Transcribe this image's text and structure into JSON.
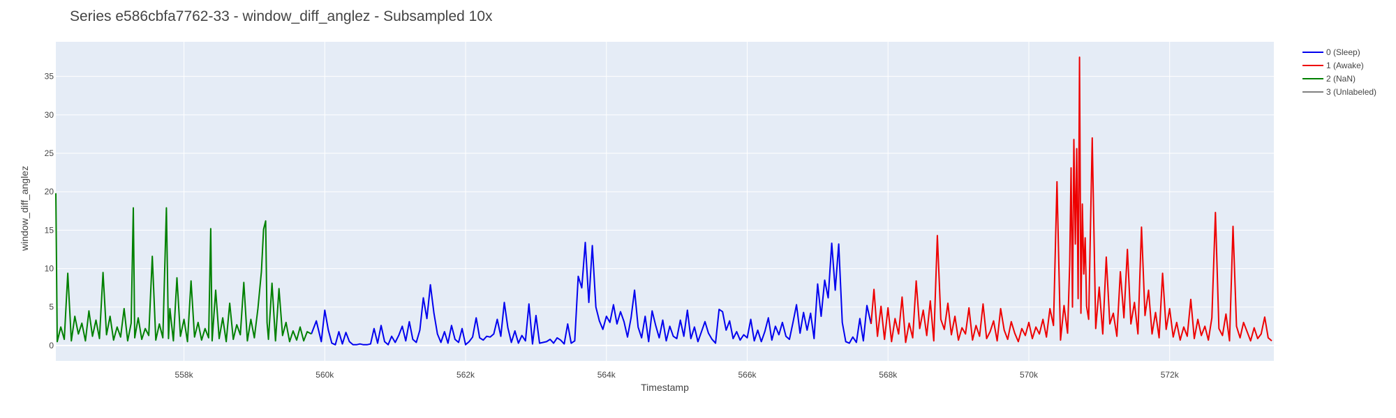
{
  "chart_data": {
    "type": "line",
    "title": "Series e586cbfa7762-33 - window_diff_anglez - Subsampled 10x",
    "xlabel": "Timestamp",
    "ylabel": "window_diff_anglez",
    "xlim": [
      556180,
      573480
    ],
    "ylim": [
      -2,
      39.5
    ],
    "x_ticks": [
      558000,
      560000,
      562000,
      564000,
      566000,
      568000,
      570000,
      572000
    ],
    "x_tick_labels": [
      "558k",
      "560k",
      "562k",
      "564k",
      "566k",
      "568k",
      "570k",
      "572k"
    ],
    "y_ticks": [
      0,
      5,
      10,
      15,
      20,
      25,
      30,
      35
    ],
    "y_tick_labels": [
      "0",
      "5",
      "10",
      "15",
      "20",
      "25",
      "30",
      "35"
    ],
    "grid": true,
    "legend_position": "top-right, outside plot",
    "series": [
      {
        "name": "0 (Sleep)",
        "color": "#0000ee",
        "x": [
          559810,
          559880,
          559950,
          560000,
          560050,
          560100,
          560150,
          560200,
          560250,
          560300,
          560350,
          560400,
          560450,
          560500,
          560550,
          560600,
          560650,
          560700,
          560750,
          560800,
          560850,
          560900,
          560950,
          561000,
          561050,
          561100,
          561150,
          561200,
          561250,
          561300,
          561350,
          561400,
          561450,
          561500,
          561550,
          561600,
          561650,
          561700,
          561750,
          561800,
          561850,
          561900,
          561950,
          562000,
          562050,
          562100,
          562150,
          562200,
          562250,
          562300,
          562350,
          562400,
          562450,
          562500,
          562550,
          562600,
          562650,
          562700,
          562750,
          562800,
          562850,
          562900,
          562950,
          563000,
          563050,
          563100,
          563150,
          563200,
          563250,
          563300,
          563350,
          563400,
          563450,
          563500,
          563550,
          563600,
          563650,
          563700,
          563750,
          563800,
          563850,
          563900,
          563950,
          564000,
          564050,
          564100,
          564150,
          564200,
          564250,
          564300,
          564350,
          564400,
          564450,
          564500,
          564550,
          564600,
          564650,
          564700,
          564750,
          564800,
          564850,
          564900,
          564950,
          565000,
          565050,
          565100,
          565150,
          565200,
          565250,
          565300,
          565350,
          565400,
          565450,
          565500,
          565550,
          565600,
          565650,
          565700,
          565750,
          565800,
          565850,
          565900,
          565950,
          566000,
          566050,
          566100,
          566150,
          566200,
          566250,
          566300,
          566350,
          566400,
          566450,
          566500,
          566550,
          566600,
          566650,
          566700,
          566750,
          566800,
          566850,
          566900,
          566950,
          567000,
          567050,
          567100,
          567150,
          567200,
          567250,
          567300,
          567350,
          567400,
          567450,
          567500,
          567550,
          567600,
          567650,
          567700,
          567760
        ],
        "y": [
          1.5,
          3.2,
          0.5,
          4.6,
          2.0,
          0.3,
          0.1,
          1.8,
          0.2,
          1.7,
          0.5,
          0.1,
          0.1,
          0.2,
          0.1,
          0.1,
          0.2,
          2.2,
          0.3,
          2.6,
          0.5,
          0.1,
          1.2,
          0.4,
          1.3,
          2.5,
          0.6,
          3.1,
          0.8,
          0.4,
          2.0,
          6.2,
          3.5,
          7.9,
          4.2,
          1.5,
          0.4,
          1.8,
          0.3,
          2.6,
          0.8,
          0.4,
          2.2,
          0.1,
          0.5,
          1.1,
          3.6,
          1.0,
          0.7,
          1.2,
          1.1,
          1.5,
          3.4,
          1.2,
          5.6,
          2.3,
          0.4,
          1.9,
          0.3,
          1.3,
          0.6,
          5.4,
          0.2,
          3.9,
          0.3,
          0.4,
          0.5,
          0.8,
          0.3,
          1.0,
          0.7,
          0.2,
          2.8,
          0.3,
          0.6,
          9.0,
          7.5,
          13.4,
          5.6,
          13.0,
          5.0,
          3.2,
          2.1,
          3.8,
          3.0,
          5.3,
          2.8,
          4.4,
          3.1,
          1.1,
          3.6,
          7.2,
          2.4,
          1.0,
          3.8,
          0.5,
          4.5,
          2.6,
          1.0,
          3.3,
          0.6,
          2.5,
          1.2,
          0.9,
          3.3,
          1.2,
          4.6,
          0.9,
          2.4,
          0.5,
          1.8,
          3.1,
          1.6,
          0.8,
          0.3,
          4.7,
          4.4,
          2.0,
          3.2,
          0.9,
          1.8,
          0.7,
          1.4,
          1.0,
          3.4,
          0.6,
          2.0,
          0.5,
          1.8,
          3.6,
          0.7,
          2.5,
          1.4,
          3.0,
          1.2,
          0.8,
          3.0,
          5.3,
          1.6,
          4.3,
          2.0,
          4.2,
          0.9,
          8.0,
          3.8,
          8.5,
          6.2,
          13.3,
          7.2,
          13.2,
          3.0,
          0.5,
          0.3,
          1.1,
          0.4,
          3.5,
          0.6,
          5.2,
          2.8
        ]
      },
      {
        "name": "1 (Awake)",
        "color": "#ee0000",
        "x": [
          567760,
          567800,
          567850,
          567900,
          567950,
          568000,
          568050,
          568100,
          568150,
          568200,
          568250,
          568300,
          568350,
          568400,
          568450,
          568500,
          568550,
          568600,
          568650,
          568700,
          568750,
          568800,
          568850,
          568900,
          568950,
          569000,
          569050,
          569100,
          569150,
          569200,
          569250,
          569300,
          569350,
          569400,
          569450,
          569500,
          569550,
          569600,
          569650,
          569700,
          569750,
          569800,
          569850,
          569900,
          569950,
          570000,
          570050,
          570100,
          570150,
          570200,
          570250,
          570300,
          570350,
          570400,
          570450,
          570500,
          570550,
          570580,
          570600,
          570620,
          570640,
          570660,
          570680,
          570700,
          570720,
          570740,
          570760,
          570780,
          570800,
          570820,
          570850,
          570900,
          570950,
          571000,
          571050,
          571100,
          571150,
          571200,
          571250,
          571300,
          571350,
          571400,
          571450,
          571500,
          571550,
          571600,
          571650,
          571700,
          571750,
          571800,
          571850,
          571900,
          571950,
          572000,
          572050,
          572100,
          572150,
          572200,
          572250,
          572300,
          572350,
          572400,
          572450,
          572500,
          572550,
          572600,
          572650,
          572700,
          572750,
          572800,
          572850,
          572900,
          572950,
          573000,
          573050,
          573100,
          573150,
          573200,
          573250,
          573300,
          573350,
          573400,
          573450
        ],
        "y": [
          2.8,
          7.3,
          1.2,
          5.1,
          0.8,
          4.9,
          0.5,
          3.5,
          1.5,
          6.3,
          0.4,
          2.9,
          1.0,
          8.4,
          2.2,
          4.6,
          1.3,
          5.8,
          0.6,
          14.3,
          3.4,
          2.1,
          5.5,
          1.4,
          3.8,
          0.7,
          2.3,
          1.5,
          4.9,
          0.7,
          2.6,
          1.2,
          5.4,
          0.9,
          1.8,
          3.2,
          0.6,
          4.8,
          2.0,
          0.8,
          3.1,
          1.6,
          0.5,
          2.2,
          1.3,
          3.0,
          0.9,
          2.4,
          1.5,
          3.4,
          1.1,
          4.8,
          2.6,
          21.3,
          0.7,
          5.2,
          1.6,
          10.5,
          23.1,
          5.0,
          26.8,
          13.2,
          25.6,
          6.1,
          37.5,
          4.2,
          18.4,
          9.3,
          14.0,
          5.1,
          3.4,
          27.0,
          2.2,
          7.6,
          1.5,
          11.5,
          2.8,
          4.2,
          1.2,
          9.6,
          3.6,
          12.5,
          2.8,
          5.6,
          1.5,
          15.4,
          3.9,
          7.2,
          1.5,
          4.3,
          1.0,
          9.4,
          2.1,
          4.8,
          1.1,
          3.0,
          0.7,
          2.4,
          1.2,
          6.0,
          0.9,
          3.4,
          1.3,
          2.5,
          0.7,
          3.6,
          17.3,
          2.2,
          1.3,
          4.1,
          0.6,
          15.5,
          2.5,
          1.0,
          3.0,
          1.8,
          0.6,
          2.3,
          0.9,
          1.5,
          3.7,
          1.0,
          0.6
        ]
      },
      {
        "name": "2 (NaN)",
        "color": "#008000",
        "x": [
          556180,
          556200,
          556250,
          556300,
          556350,
          556400,
          556450,
          556500,
          556550,
          556600,
          556650,
          556700,
          556750,
          556800,
          556850,
          556900,
          556950,
          557000,
          557050,
          557100,
          557150,
          557200,
          557250,
          557280,
          557300,
          557350,
          557400,
          557450,
          557500,
          557550,
          557600,
          557650,
          557700,
          557750,
          557780,
          557800,
          557850,
          557900,
          557950,
          558000,
          558050,
          558100,
          558150,
          558200,
          558250,
          558300,
          558350,
          558380,
          558400,
          558450,
          558500,
          558550,
          558600,
          558650,
          558700,
          558750,
          558800,
          558850,
          558900,
          558950,
          559000,
          559050,
          559100,
          559130,
          559160,
          559180,
          559200,
          559250,
          559300,
          559350,
          559400,
          559450,
          559500,
          559550,
          559600,
          559650,
          559700,
          559750,
          559810
        ],
        "y": [
          19.8,
          0.5,
          2.4,
          0.8,
          9.4,
          0.6,
          3.8,
          1.5,
          2.9,
          0.6,
          4.5,
          1.2,
          3.3,
          0.9,
          9.5,
          1.4,
          3.8,
          0.7,
          2.4,
          1.1,
          4.8,
          0.6,
          2.9,
          17.9,
          1.0,
          3.6,
          0.8,
          2.2,
          1.3,
          11.6,
          0.7,
          2.8,
          1.0,
          17.9,
          0.9,
          4.8,
          0.6,
          8.8,
          1.2,
          3.4,
          0.5,
          8.4,
          1.1,
          3.0,
          0.7,
          2.2,
          1.0,
          15.2,
          0.6,
          7.2,
          0.9,
          3.6,
          0.5,
          5.5,
          0.8,
          2.7,
          1.4,
          8.2,
          0.6,
          3.4,
          1.0,
          4.8,
          9.6,
          15.1,
          16.2,
          3.0,
          0.8,
          8.1,
          0.6,
          7.4,
          1.3,
          3.0,
          0.5,
          1.9,
          0.7,
          2.4,
          0.6,
          1.8,
          1.5
        ]
      },
      {
        "name": "3 (Unlabeled)",
        "color": "#808080",
        "x": [],
        "y": []
      }
    ]
  }
}
